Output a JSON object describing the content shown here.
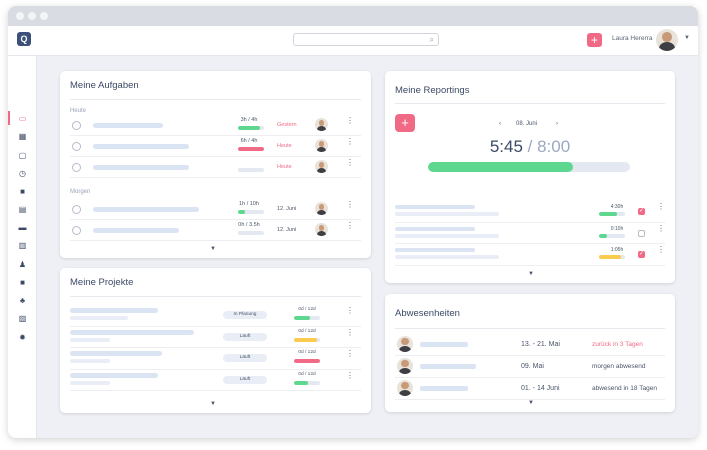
{
  "header": {
    "user_name": "Laura Hererra",
    "logo_text": "Q"
  },
  "colors": {
    "accent": "#f06a86",
    "green": "#5dd88e",
    "red": "#f06a86",
    "yellow": "#f9cb4e",
    "title": "#3c4a66"
  },
  "tasks": {
    "title": "Meine Aufgaben",
    "section_today": "Heute",
    "section_tomorrow": "Morgen",
    "rows": [
      {
        "time": "3h / 4h",
        "progress": 0.85,
        "color": "#5dd88e",
        "due": "Gestern",
        "due_red": true
      },
      {
        "time": "6h / 4h",
        "progress": 1.0,
        "color": "#f06a86",
        "due": "Heute",
        "due_red": true
      },
      {
        "time": "",
        "progress": 0,
        "color": "#5dd88e",
        "due": "Heute",
        "due_red": true
      },
      {
        "time": "1h / 10h",
        "progress": 0.25,
        "color": "#5dd88e",
        "due": "12. Juni",
        "due_red": false
      },
      {
        "time": "0h / 3.5h",
        "progress": 0,
        "color": "#5dd88e",
        "due": "12. Juni",
        "due_red": false
      }
    ]
  },
  "projects": {
    "title": "Meine Projekte",
    "rows": [
      {
        "status": "In Planung",
        "days": "0d / 12d",
        "progress": 0.6,
        "color": "#5dd88e"
      },
      {
        "status": "Läuft",
        "days": "0d / 12d",
        "progress": 0.9,
        "color": "#f9cb4e"
      },
      {
        "status": "Läuft",
        "days": "0d / 12d",
        "progress": 1.0,
        "color": "#f06a86"
      },
      {
        "status": "Läuft",
        "days": "0d / 12d",
        "progress": 0.55,
        "color": "#5dd88e"
      }
    ]
  },
  "reportings": {
    "title": "Meine Reportings",
    "date": "08. Juni",
    "prev": "‹",
    "next": "›",
    "add": "+",
    "time_done": "5:45",
    "separator": " / ",
    "time_target": "8:00",
    "progress": 0.72,
    "rows": [
      {
        "hours": "4:30h",
        "progress": 0.7,
        "color": "#5dd88e",
        "checked": true
      },
      {
        "hours": "0:10h",
        "progress": 0.3,
        "color": "#5dd88e",
        "checked": false
      },
      {
        "hours": "1:05h",
        "progress": 0.85,
        "color": "#f9cb4e",
        "checked": true
      }
    ]
  },
  "absences": {
    "title": "Abwesenheiten",
    "rows": [
      {
        "date": "13. - 21. Mai",
        "status": "zurück in 3 Tagen",
        "red": true
      },
      {
        "date": "09. Mai",
        "status": "morgen abwesend",
        "red": false
      },
      {
        "date": "01. - 14 Juni",
        "status": "abwesend in 18 Tagen",
        "red": false
      }
    ]
  }
}
